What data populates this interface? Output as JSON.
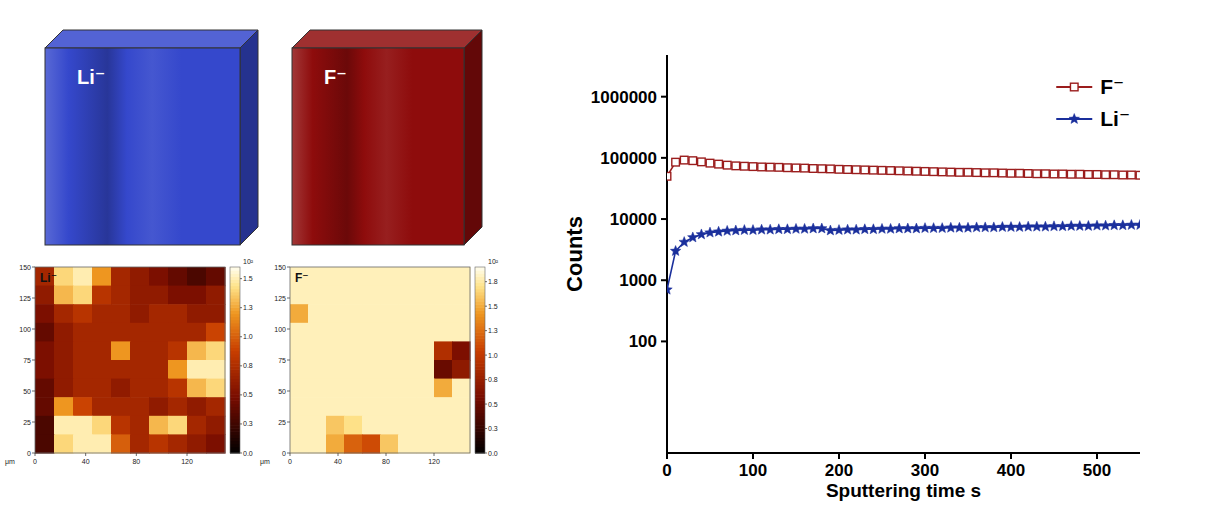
{
  "chart_data": [
    {
      "type": "volume",
      "title": "Li⁻",
      "color": "#3548cc"
    },
    {
      "type": "volume",
      "title": "F⁻",
      "color": "#8e0c0c"
    },
    {
      "type": "heatmap",
      "title": "Li⁻",
      "xlabel": "μm",
      "xlim": [
        0,
        150
      ],
      "ylim": [
        0,
        150
      ],
      "xticks": [
        0,
        40,
        80,
        120
      ],
      "yticks": [
        0,
        25,
        50,
        75,
        100,
        125,
        150
      ],
      "cells": [
        [
          0.7,
          1.4,
          1.5,
          1.2,
          0.7,
          0.6,
          0.5,
          0.4,
          0.3,
          0.4
        ],
        [
          0.6,
          1.3,
          1.4,
          0.8,
          0.7,
          0.6,
          0.6,
          0.5,
          0.5,
          0.6
        ],
        [
          0.5,
          0.7,
          0.8,
          0.7,
          0.7,
          0.6,
          0.7,
          0.7,
          0.6,
          0.6
        ],
        [
          0.4,
          0.6,
          0.7,
          0.7,
          0.7,
          0.7,
          0.7,
          0.7,
          0.7,
          0.9
        ],
        [
          0.5,
          0.6,
          0.7,
          0.7,
          1.2,
          0.7,
          0.7,
          0.8,
          1.3,
          1.4
        ],
        [
          0.5,
          0.6,
          0.7,
          0.7,
          0.7,
          0.7,
          0.7,
          1.2,
          1.5,
          1.5
        ],
        [
          0.4,
          0.6,
          0.7,
          0.7,
          0.6,
          0.7,
          0.7,
          0.8,
          1.3,
          1.4
        ],
        [
          0.4,
          1.2,
          0.9,
          0.7,
          0.7,
          0.7,
          0.6,
          0.7,
          0.6,
          0.7
        ],
        [
          0.3,
          1.5,
          1.5,
          1.4,
          0.8,
          0.7,
          1.3,
          1.4,
          0.7,
          0.6
        ],
        [
          0.3,
          1.4,
          1.5,
          1.5,
          1.0,
          0.7,
          0.8,
          0.7,
          0.6,
          0.5
        ]
      ],
      "colorbar": {
        "lim": [
          0,
          1.6
        ],
        "label": "10²",
        "ticks": [
          {
            "value": 0,
            "label": "0.0"
          },
          {
            "value": 0.25,
            "label": "0.3"
          },
          0.5,
          {
            "value": 0.75,
            "label": "0.8"
          },
          {
            "value": 1,
            "label": "1.0"
          },
          {
            "value": 1.25,
            "label": "1.3"
          },
          1.5
        ]
      }
    },
    {
      "type": "heatmap",
      "title": "F⁻",
      "xlabel": "μm",
      "xlim": [
        0,
        150
      ],
      "ylim": [
        0,
        150
      ],
      "xticks": [
        0,
        40,
        80,
        120
      ],
      "yticks": [
        0,
        25,
        50,
        75,
        100,
        125,
        150
      ],
      "cells": [
        [
          1.8,
          1.8,
          1.8,
          1.8,
          1.8,
          1.8,
          1.8,
          1.8,
          1.8,
          1.8
        ],
        [
          1.8,
          1.8,
          1.8,
          1.8,
          1.8,
          1.8,
          1.8,
          1.8,
          1.8,
          1.8
        ],
        [
          1.5,
          1.8,
          1.8,
          1.8,
          1.8,
          1.8,
          1.8,
          1.8,
          1.8,
          1.8
        ],
        [
          1.8,
          1.8,
          1.8,
          1.8,
          1.8,
          1.8,
          1.8,
          1.8,
          1.8,
          1.8
        ],
        [
          1.8,
          1.8,
          1.8,
          1.8,
          1.8,
          1.8,
          1.8,
          1.8,
          0.9,
          0.6
        ],
        [
          1.8,
          1.8,
          1.8,
          1.8,
          1.8,
          1.8,
          1.8,
          1.8,
          0.5,
          0.7
        ],
        [
          1.8,
          1.8,
          1.8,
          1.8,
          1.8,
          1.8,
          1.8,
          1.8,
          1.5,
          1.8
        ],
        [
          1.8,
          1.8,
          1.8,
          1.8,
          1.8,
          1.8,
          1.8,
          1.8,
          1.8,
          1.8
        ],
        [
          1.8,
          1.8,
          1.6,
          1.7,
          1.8,
          1.8,
          1.8,
          1.8,
          1.8,
          1.8
        ],
        [
          1.8,
          1.8,
          1.5,
          1.2,
          1.1,
          1.6,
          1.8,
          1.8,
          1.8,
          1.8
        ]
      ],
      "colorbar": {
        "lim": [
          0,
          1.9
        ],
        "label": "10²",
        "ticks": [
          {
            "value": 0,
            "label": "0.0"
          },
          {
            "value": 0.25,
            "label": "0.3"
          },
          0.5,
          {
            "value": 0.75,
            "label": "0.8"
          },
          {
            "value": 1,
            "label": "1.0"
          },
          {
            "value": 1.25,
            "label": "1.3"
          },
          1.5,
          {
            "value": 1.75,
            "label": "1.8"
          }
        ]
      }
    },
    {
      "type": "line",
      "xlabel": "Sputtering time s",
      "ylabel": "Counts",
      "log": "y",
      "legend": "upper right",
      "xlim": [
        0,
        550
      ],
      "xticks": [
        0,
        100,
        200,
        300,
        400,
        500
      ],
      "ylim": [
        1.5,
        4800000
      ],
      "yticks": [
        100,
        1000,
        10000,
        100000,
        1000000
      ],
      "x": [
        0,
        10,
        20,
        30,
        40,
        50,
        60,
        70,
        80,
        90,
        100,
        110,
        120,
        130,
        140,
        150,
        160,
        170,
        180,
        190,
        200,
        210,
        220,
        230,
        240,
        250,
        260,
        270,
        280,
        290,
        300,
        310,
        320,
        330,
        340,
        350,
        360,
        370,
        380,
        390,
        400,
        410,
        420,
        430,
        440,
        450,
        460,
        470,
        480,
        490,
        500,
        510,
        520,
        530,
        540,
        550
      ],
      "series": [
        {
          "name": "F⁻",
          "color": "#9b1d1d",
          "marker": "square",
          "values": [
            50000,
            85000,
            92000,
            90000,
            86000,
            82000,
            79000,
            76000,
            74000,
            73000,
            72000,
            71000,
            70500,
            70000,
            69000,
            68500,
            68000,
            67000,
            66500,
            66000,
            65000,
            64500,
            64000,
            63500,
            63000,
            62500,
            62000,
            61500,
            61000,
            60500,
            60000,
            59500,
            59000,
            58500,
            58000,
            58000,
            57500,
            57000,
            57000,
            56500,
            56000,
            56000,
            55500,
            55000,
            55000,
            54500,
            54500,
            54000,
            54000,
            53500,
            53500,
            53000,
            53000,
            52500,
            52500,
            52000
          ]
        },
        {
          "name": "Li⁻",
          "color": "#1a2f9c",
          "marker": "star",
          "values": [
            700,
            3000,
            4200,
            5000,
            5600,
            6000,
            6200,
            6400,
            6500,
            6600,
            6600,
            6700,
            6700,
            6800,
            6800,
            6900,
            6900,
            7000,
            7000,
            6500,
            6600,
            6700,
            6700,
            6800,
            6800,
            6900,
            6900,
            7000,
            7000,
            7000,
            7100,
            7100,
            7100,
            7200,
            7200,
            7200,
            7300,
            7300,
            7300,
            7400,
            7400,
            7400,
            7500,
            7500,
            7500,
            7600,
            7600,
            7700,
            7700,
            7700,
            7800,
            7800,
            7900,
            7900,
            8000,
            8000
          ]
        }
      ]
    }
  ]
}
